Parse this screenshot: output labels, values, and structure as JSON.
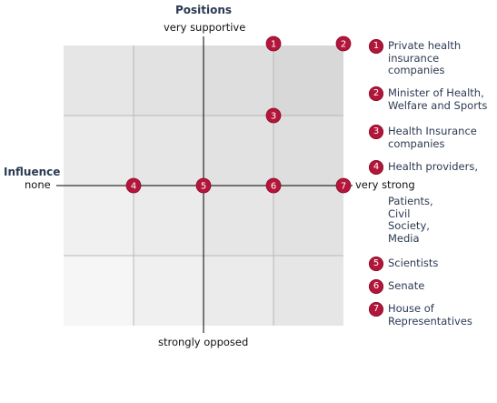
{
  "axes": {
    "positions_title": "Positions",
    "top_label": "very supportive",
    "bottom_label": "strongly opposed",
    "influence_title": "Influence",
    "left_label": "none",
    "right_label": "very strong"
  },
  "markers": [
    {
      "id": "1",
      "influence": 3,
      "position": 4
    },
    {
      "id": "2",
      "influence": 4,
      "position": 4
    },
    {
      "id": "3",
      "influence": 3,
      "position": 3
    },
    {
      "id": "4",
      "influence": 1,
      "position": 2
    },
    {
      "id": "5",
      "influence": 2,
      "position": 2
    },
    {
      "id": "6",
      "influence": 3,
      "position": 2
    },
    {
      "id": "7",
      "influence": 4,
      "position": 2
    }
  ],
  "legend": [
    {
      "num": "1",
      "lines": [
        "Private health",
        "insurance",
        "companies"
      ]
    },
    {
      "num": "2",
      "lines": [
        "Minister of Health,",
        "Welfare and Sports"
      ]
    },
    {
      "num": "3",
      "lines": [
        "Health Insurance",
        "companies"
      ]
    },
    {
      "num": "4",
      "lines": [
        "Health providers,"
      ],
      "extra": [
        "Patients,",
        "Civil",
        "Society,",
        "Media"
      ]
    },
    {
      "num": "5",
      "lines": [
        "Scientists"
      ]
    },
    {
      "num": "6",
      "lines": [
        "Senate"
      ]
    },
    {
      "num": "7",
      "lines": [
        "House of",
        "Representatives"
      ]
    }
  ],
  "colors": {
    "marker": "#b3163a",
    "grid_line": "#b8b8b8",
    "axis_line": "#000000"
  }
}
